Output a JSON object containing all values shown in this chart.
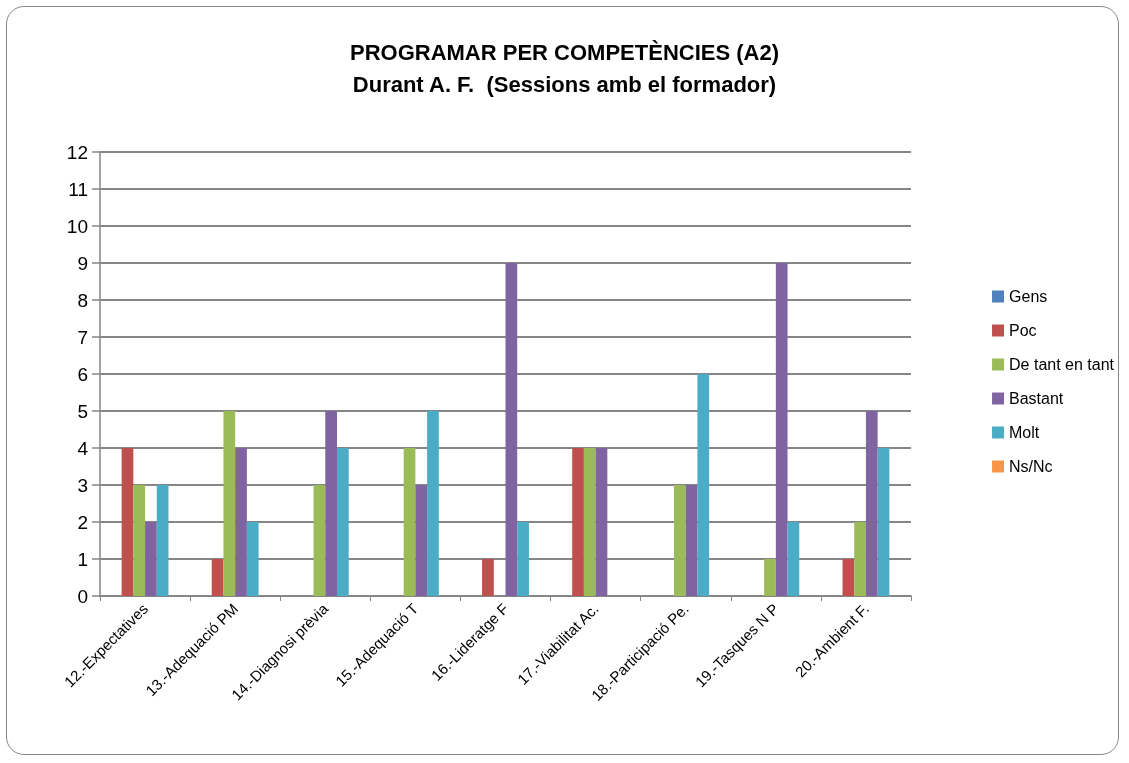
{
  "chart_data": {
    "type": "bar",
    "title": "PROGRAMAR PER COMPETÈNCIES (A2)",
    "subtitle": "Durant A. F.  (Sessions amb el formador)",
    "categories": [
      "12.-Expectatives",
      "13.-Adequació PM",
      "14.-Diagnosi prèvia",
      "15.-Adequació T",
      "16.-Lideratge F",
      "17.-Viabilitat Ac.",
      "18.-Participació Pe.",
      "19.-Tasques N P",
      "20.-Ambient F."
    ],
    "series": [
      {
        "name": "Gens",
        "color": "#4f81bd",
        "values": [
          0,
          0,
          0,
          0,
          0,
          0,
          0,
          0,
          0
        ]
      },
      {
        "name": "Poc",
        "color": "#c0504d",
        "values": [
          4,
          1,
          0,
          0,
          1,
          4,
          0,
          0,
          1
        ]
      },
      {
        "name": "De tant en tant",
        "color": "#9bbb59",
        "values": [
          3,
          5,
          3,
          4,
          0,
          4,
          3,
          1,
          2
        ]
      },
      {
        "name": "Bastant",
        "color": "#8064a2",
        "values": [
          2,
          4,
          5,
          3,
          9,
          4,
          3,
          9,
          5
        ]
      },
      {
        "name": "Molt",
        "color": "#4bacc6",
        "values": [
          3,
          2,
          4,
          5,
          2,
          0,
          6,
          2,
          4
        ]
      },
      {
        "name": "Ns/Nc",
        "color": "#f79646",
        "values": [
          0,
          0,
          0,
          0,
          0,
          0,
          0,
          0,
          0
        ]
      }
    ],
    "ylim": [
      0,
      12
    ],
    "yticks": [
      0,
      1,
      2,
      3,
      4,
      5,
      6,
      7,
      8,
      9,
      10,
      11,
      12
    ],
    "grid": "y",
    "legend": "right"
  }
}
